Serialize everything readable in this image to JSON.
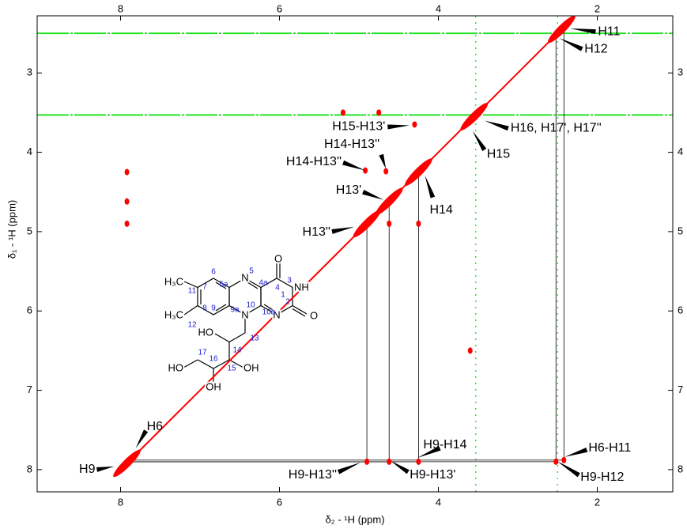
{
  "chart_data": {
    "type": "nmr2d",
    "xlabel": "δ₂ - ¹H  (ppm)",
    "ylabel": "δ₁ - ¹H  (ppm)",
    "xlim": [
      9.05,
      1.05
    ],
    "ylim": [
      2.28,
      8.28
    ],
    "xticks": [
      8,
      6,
      4,
      2
    ],
    "yticks": [
      3,
      4,
      5,
      6,
      7,
      8
    ],
    "peak_color": "#ff0000",
    "solvent_color": "#00dd00",
    "diagonal_peaks": [
      7.92,
      4.9,
      4.62,
      4.25,
      3.55,
      2.45
    ],
    "cross_peaks": {
      "x": [
        4.9,
        4.62,
        4.25,
        2.52,
        2.42,
        7.92,
        7.92,
        7.92,
        4.92,
        4.66,
        4.3,
        4.25,
        4.62,
        5.2,
        4.75,
        3.6
      ],
      "y": [
        7.9,
        7.9,
        7.9,
        7.9,
        7.88,
        4.25,
        4.62,
        4.9,
        4.23,
        4.24,
        3.65,
        4.9,
        4.9,
        3.5,
        3.5,
        6.5
      ]
    },
    "solvent_lines": [
      2.5,
      3.53
    ],
    "annotations": [
      {
        "text": "H11",
        "x": 2.34,
        "y": 2.44
      },
      {
        "text": "H12",
        "x": 2.48,
        "y": 2.56
      },
      {
        "text": "H16, H17', H17''",
        "x": 3.42,
        "y": 3.6
      },
      {
        "text": "H15",
        "x": 3.57,
        "y": 3.73
      },
      {
        "text": "H15-H13'",
        "x": 4.36,
        "y": 3.66
      },
      {
        "text": "H14-H13''",
        "x": 4.66,
        "y": 4.21
      },
      {
        "text": "H14-H13''",
        "x": 4.92,
        "y": 4.23
      },
      {
        "text": "H13'",
        "x": 4.69,
        "y": 4.6
      },
      {
        "text": "H14",
        "x": 4.17,
        "y": 4.29
      },
      {
        "text": "H13''",
        "x": 5.06,
        "y": 4.94
      },
      {
        "text": "H6",
        "x": 7.81,
        "y": 7.73
      },
      {
        "text": "H9",
        "x": 8.08,
        "y": 7.96
      },
      {
        "text": "H9-H14",
        "x": 4.26,
        "y": 7.85
      },
      {
        "text": "H9-H13''",
        "x": 4.98,
        "y": 7.91
      },
      {
        "text": "H9-H13'",
        "x": 4.6,
        "y": 7.89
      },
      {
        "text": "H6-H11",
        "x": 2.41,
        "y": 7.84
      },
      {
        "text": "H9-H12",
        "x": 2.51,
        "y": 7.89
      }
    ]
  },
  "structure": {
    "atoms": [
      "H₃C",
      "H₃C",
      "N",
      "O",
      "NH",
      "O",
      "N",
      "N",
      "HO",
      "OH",
      "OH",
      "HO"
    ],
    "numbers": [
      "6",
      "5a",
      "5",
      "4a",
      "4",
      "3",
      "2",
      "1",
      "7",
      "11",
      "8",
      "12",
      "9",
      "9a",
      "10",
      "10a",
      "13",
      "14",
      "15",
      "16",
      "17"
    ]
  }
}
